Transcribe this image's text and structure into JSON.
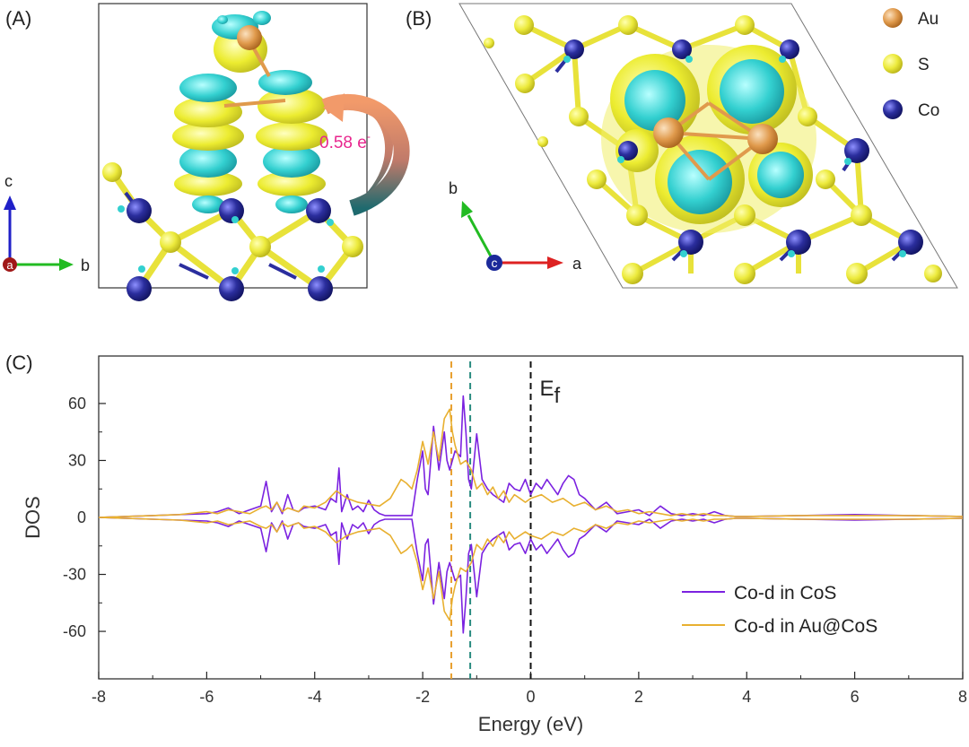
{
  "panel_a": {
    "label": "(A)",
    "charge_transfer_value": "0.58 e",
    "charge_transfer_sup": "-",
    "axis_c": "c",
    "axis_a": "a",
    "axis_b": "b"
  },
  "panel_b": {
    "label": "(B)",
    "axis_b": "b",
    "axis_c": "c",
    "axis_a": "a",
    "legend": [
      {
        "name": "Au",
        "color": "#e0a15a"
      },
      {
        "name": "S",
        "color": "#e8e23a"
      },
      {
        "name": "Co",
        "color": "#2d2fa6"
      }
    ]
  },
  "panel_c": {
    "label": "(C)"
  },
  "colors": {
    "cos": "#7b22e0",
    "aucos": "#e8b030",
    "s_atom": "#ecea3c",
    "co_atom": "#2b2e9e",
    "au_atom": "#e09a4c",
    "iso_cyan": "#33d0d0",
    "iso_yellow": "#ecec30"
  },
  "chart_data": {
    "type": "line",
    "xlabel": "Energy (eV)",
    "ylabel": "DOS",
    "xlim": [
      -8,
      8
    ],
    "ylim": [
      -85,
      85
    ],
    "xticks": [
      -8,
      -6,
      -4,
      -2,
      0,
      2,
      4,
      6,
      8
    ],
    "yticks": [
      60,
      30,
      0,
      -30,
      -60
    ],
    "fermi_label": "E",
    "fermi_sub": "f",
    "vlines": [
      {
        "x": -1.47,
        "color": "#e8a030",
        "style": "dashed"
      },
      {
        "x": -1.12,
        "color": "#2a8c80",
        "style": "dashed"
      },
      {
        "x": 0.0,
        "color": "#111111",
        "style": "dashed"
      }
    ],
    "legend_placement": "bottom-right",
    "series": [
      {
        "name": "Co-d in CoS",
        "color": "#7b22e0",
        "x": [
          -8,
          -7.5,
          -7,
          -6.5,
          -6,
          -5.8,
          -5.6,
          -5.4,
          -5.2,
          -5.0,
          -4.9,
          -4.8,
          -4.7,
          -4.6,
          -4.5,
          -4.4,
          -4.3,
          -4.2,
          -4.0,
          -3.8,
          -3.7,
          -3.6,
          -3.55,
          -3.5,
          -3.4,
          -3.3,
          -3.2,
          -3.1,
          -3.0,
          -2.9,
          -2.8,
          -2.7,
          -2.6,
          -2.5,
          -2.4,
          -2.3,
          -2.2,
          -2.1,
          -2.0,
          -1.95,
          -1.9,
          -1.8,
          -1.7,
          -1.6,
          -1.55,
          -1.5,
          -1.4,
          -1.3,
          -1.25,
          -1.2,
          -1.15,
          -1.1,
          -1.0,
          -0.9,
          -0.8,
          -0.7,
          -0.6,
          -0.5,
          -0.4,
          -0.3,
          -0.2,
          -0.1,
          0.0,
          0.1,
          0.2,
          0.3,
          0.4,
          0.5,
          0.6,
          0.7,
          0.8,
          0.9,
          1.0,
          1.2,
          1.4,
          1.6,
          1.8,
          2.0,
          2.2,
          2.4,
          2.6,
          2.8,
          3.0,
          3.2,
          3.4,
          3.6,
          3.8,
          4.0,
          5.0,
          6.0,
          7.0,
          8.0
        ],
        "values": [
          0,
          0.5,
          1,
          1.5,
          2,
          3,
          5,
          2,
          4,
          6,
          19,
          3,
          8,
          2,
          12,
          4,
          3,
          5,
          6,
          4,
          10,
          8,
          26,
          3,
          12,
          4,
          6,
          3,
          9,
          4,
          2,
          1,
          1,
          1,
          1,
          1,
          1,
          20,
          35,
          15,
          12,
          48,
          25,
          45,
          30,
          25,
          35,
          32,
          64,
          45,
          20,
          15,
          44,
          20,
          15,
          12,
          10,
          8,
          18,
          15,
          14,
          20,
          12,
          18,
          15,
          20,
          16,
          12,
          18,
          22,
          20,
          12,
          10,
          4,
          8,
          2,
          3,
          4,
          1,
          6,
          2,
          1,
          2,
          1,
          3,
          1,
          0.5,
          0.5,
          1,
          1.5,
          1,
          0.5
        ]
      },
      {
        "name": "Co-d in Au@CoS",
        "color": "#e8b030",
        "x": [
          -8,
          -7.5,
          -7,
          -6.5,
          -6,
          -5.8,
          -5.6,
          -5.4,
          -5.2,
          -5.0,
          -4.9,
          -4.8,
          -4.7,
          -4.6,
          -4.5,
          -4.4,
          -4.3,
          -4.2,
          -4.0,
          -3.8,
          -3.6,
          -3.4,
          -3.2,
          -3.0,
          -2.8,
          -2.6,
          -2.4,
          -2.3,
          -2.2,
          -2.1,
          -2.0,
          -1.9,
          -1.8,
          -1.7,
          -1.6,
          -1.5,
          -1.45,
          -1.4,
          -1.3,
          -1.2,
          -1.1,
          -1.0,
          -0.9,
          -0.8,
          -0.7,
          -0.6,
          -0.5,
          -0.4,
          -0.3,
          -0.2,
          -0.1,
          0.0,
          0.2,
          0.4,
          0.6,
          0.8,
          1.0,
          1.2,
          1.4,
          1.6,
          1.8,
          2.0,
          2.2,
          2.4,
          2.6,
          2.8,
          3.0,
          3.2,
          3.4,
          3.6,
          3.8,
          4.0,
          5.0,
          6.0,
          7.0,
          8.0
        ],
        "values": [
          0,
          0.5,
          1,
          1.5,
          3,
          2,
          4,
          3,
          2,
          5,
          6,
          4,
          8,
          3,
          5,
          4,
          3,
          6,
          5,
          8,
          14,
          10,
          8,
          7,
          6,
          10,
          20,
          18,
          15,
          25,
          40,
          28,
          45,
          30,
          52,
          57,
          45,
          38,
          28,
          30,
          25,
          15,
          18,
          12,
          16,
          10,
          14,
          8,
          12,
          10,
          8,
          10,
          12,
          8,
          10,
          6,
          8,
          4,
          6,
          3,
          4,
          2,
          3,
          2,
          1,
          2,
          1,
          2,
          1,
          1,
          0.5,
          0.5,
          1,
          1,
          1,
          0.5
        ]
      }
    ]
  }
}
